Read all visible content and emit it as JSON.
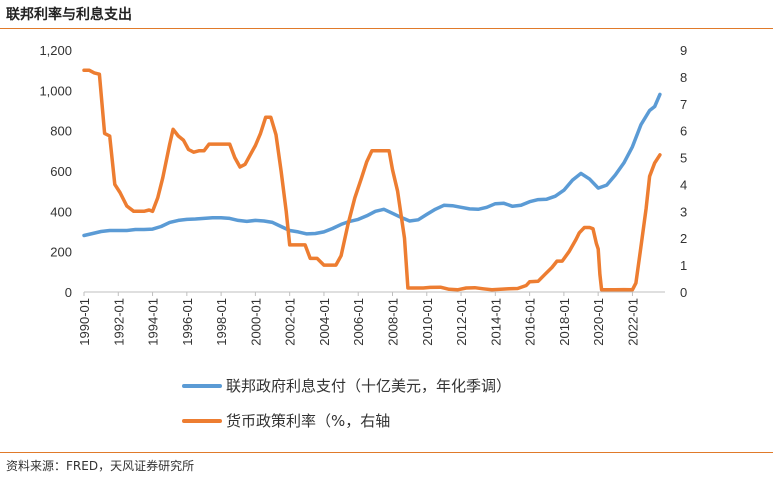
{
  "title": "联邦利率与利息支出",
  "source": "资料来源：FRED，天风证券研究所",
  "chart_data": {
    "type": "line",
    "x_tick_labels": [
      "1990-01",
      "1992-01",
      "1994-01",
      "1996-01",
      "1998-01",
      "2000-01",
      "2002-01",
      "2004-01",
      "2006-01",
      "2008-01",
      "2010-01",
      "2012-01",
      "2014-01",
      "2016-01",
      "2018-01",
      "2020-01",
      "2022-01"
    ],
    "y_left": {
      "ylim": [
        0,
        1200
      ],
      "ticks": [
        0,
        200,
        400,
        600,
        800,
        1000,
        1200
      ],
      "tick_labels": [
        "0",
        "200",
        "400",
        "600",
        "800",
        "1,000",
        "1,200"
      ]
    },
    "y_right": {
      "ylim": [
        0,
        9
      ],
      "ticks": [
        0,
        1,
        2,
        3,
        4,
        5,
        6,
        7,
        8,
        9
      ],
      "tick_labels": [
        "0",
        "1",
        "2",
        "3",
        "4",
        "5",
        "6",
        "7",
        "8",
        "9"
      ]
    },
    "legend_placement": "bottom",
    "grid": false,
    "series": [
      {
        "name": "联邦政府利息支付（十亿美元，年化季调）",
        "axis": "left",
        "color": "#5b9bd5",
        "x": [
          1990.0,
          1990.5,
          1991.0,
          1991.5,
          1992.0,
          1992.5,
          1993.0,
          1993.5,
          1994.0,
          1994.5,
          1995.0,
          1995.5,
          1996.0,
          1996.5,
          1997.0,
          1997.5,
          1998.0,
          1998.5,
          1999.0,
          1999.5,
          2000.0,
          2000.5,
          2001.0,
          2001.5,
          2002.0,
          2002.5,
          2003.0,
          2003.5,
          2004.0,
          2004.5,
          2005.0,
          2005.5,
          2006.0,
          2006.5,
          2007.0,
          2007.5,
          2008.0,
          2008.5,
          2009.0,
          2009.5,
          2010.0,
          2010.5,
          2011.0,
          2011.5,
          2012.0,
          2012.5,
          2013.0,
          2013.5,
          2014.0,
          2014.5,
          2015.0,
          2015.5,
          2016.0,
          2016.5,
          2017.0,
          2017.5,
          2018.0,
          2018.5,
          2019.0,
          2019.5,
          2020.0,
          2020.5,
          2021.0,
          2021.5,
          2022.0,
          2022.5,
          2023.0,
          2023.3,
          2023.6
        ],
        "values": [
          280,
          290,
          300,
          305,
          305,
          305,
          310,
          310,
          312,
          325,
          345,
          355,
          360,
          362,
          365,
          368,
          368,
          365,
          355,
          350,
          355,
          352,
          345,
          325,
          305,
          298,
          288,
          290,
          298,
          315,
          335,
          350,
          360,
          378,
          400,
          410,
          390,
          370,
          352,
          358,
          385,
          410,
          430,
          428,
          420,
          412,
          410,
          420,
          438,
          440,
          425,
          430,
          448,
          458,
          460,
          475,
          505,
          555,
          588,
          560,
          515,
          530,
          580,
          640,
          720,
          830,
          900,
          920,
          980
        ]
      },
      {
        "name": "货币政策利率（%，右轴",
        "axis": "right",
        "color": "#ed7d31",
        "x": [
          1990.0,
          1990.3,
          1990.6,
          1990.9,
          1991.2,
          1991.5,
          1991.8,
          1992.1,
          1992.5,
          1992.9,
          1993.2,
          1993.5,
          1993.8,
          1994.0,
          1994.3,
          1994.6,
          1995.0,
          1995.2,
          1995.5,
          1995.8,
          1996.1,
          1996.4,
          1996.7,
          1997.0,
          1997.3,
          1997.6,
          1997.9,
          1998.2,
          1998.5,
          1998.8,
          1999.1,
          1999.4,
          1999.7,
          2000.0,
          2000.3,
          2000.6,
          2000.9,
          2001.2,
          2001.5,
          2001.8,
          2002.0,
          2002.5,
          2002.9,
          2003.2,
          2003.6,
          2004.0,
          2004.4,
          2004.7,
          2005.0,
          2005.4,
          2005.8,
          2006.2,
          2006.5,
          2006.8,
          2007.2,
          2007.5,
          2007.8,
          2008.0,
          2008.3,
          2008.7,
          2008.9,
          2009.3,
          2009.8,
          2010.2,
          2010.8,
          2011.3,
          2011.8,
          2012.3,
          2012.8,
          2013.3,
          2013.8,
          2014.3,
          2014.8,
          2015.3,
          2015.8,
          2016.0,
          2016.5,
          2016.9,
          2017.3,
          2017.6,
          2017.9,
          2018.3,
          2018.7,
          2018.9,
          2019.2,
          2019.5,
          2019.7,
          2019.9,
          2020.0,
          2020.1,
          2020.2,
          2020.5,
          2021.0,
          2021.5,
          2022.0,
          2022.2,
          2022.5,
          2022.8,
          2023.0,
          2023.3,
          2023.6
        ],
        "values": [
          8.25,
          8.25,
          8.15,
          8.1,
          5.9,
          5.8,
          4.0,
          3.7,
          3.2,
          3.0,
          3.0,
          3.0,
          3.05,
          3.0,
          3.5,
          4.25,
          5.5,
          6.05,
          5.8,
          5.65,
          5.3,
          5.2,
          5.25,
          5.25,
          5.5,
          5.5,
          5.5,
          5.5,
          5.5,
          5.0,
          4.65,
          4.75,
          5.1,
          5.45,
          5.9,
          6.5,
          6.5,
          5.85,
          4.5,
          3.0,
          1.75,
          1.75,
          1.75,
          1.25,
          1.25,
          1.0,
          1.0,
          1.0,
          1.35,
          2.5,
          3.5,
          4.25,
          4.85,
          5.25,
          5.25,
          5.25,
          5.25,
          4.55,
          3.75,
          2.0,
          0.15,
          0.15,
          0.15,
          0.17,
          0.18,
          0.1,
          0.08,
          0.15,
          0.16,
          0.12,
          0.08,
          0.1,
          0.12,
          0.13,
          0.24,
          0.38,
          0.4,
          0.66,
          0.91,
          1.15,
          1.15,
          1.5,
          1.95,
          2.2,
          2.4,
          2.4,
          2.35,
          1.8,
          1.6,
          0.65,
          0.08,
          0.08,
          0.08,
          0.09,
          0.08,
          0.33,
          1.7,
          3.1,
          4.3,
          4.8,
          5.1
        ]
      }
    ]
  }
}
